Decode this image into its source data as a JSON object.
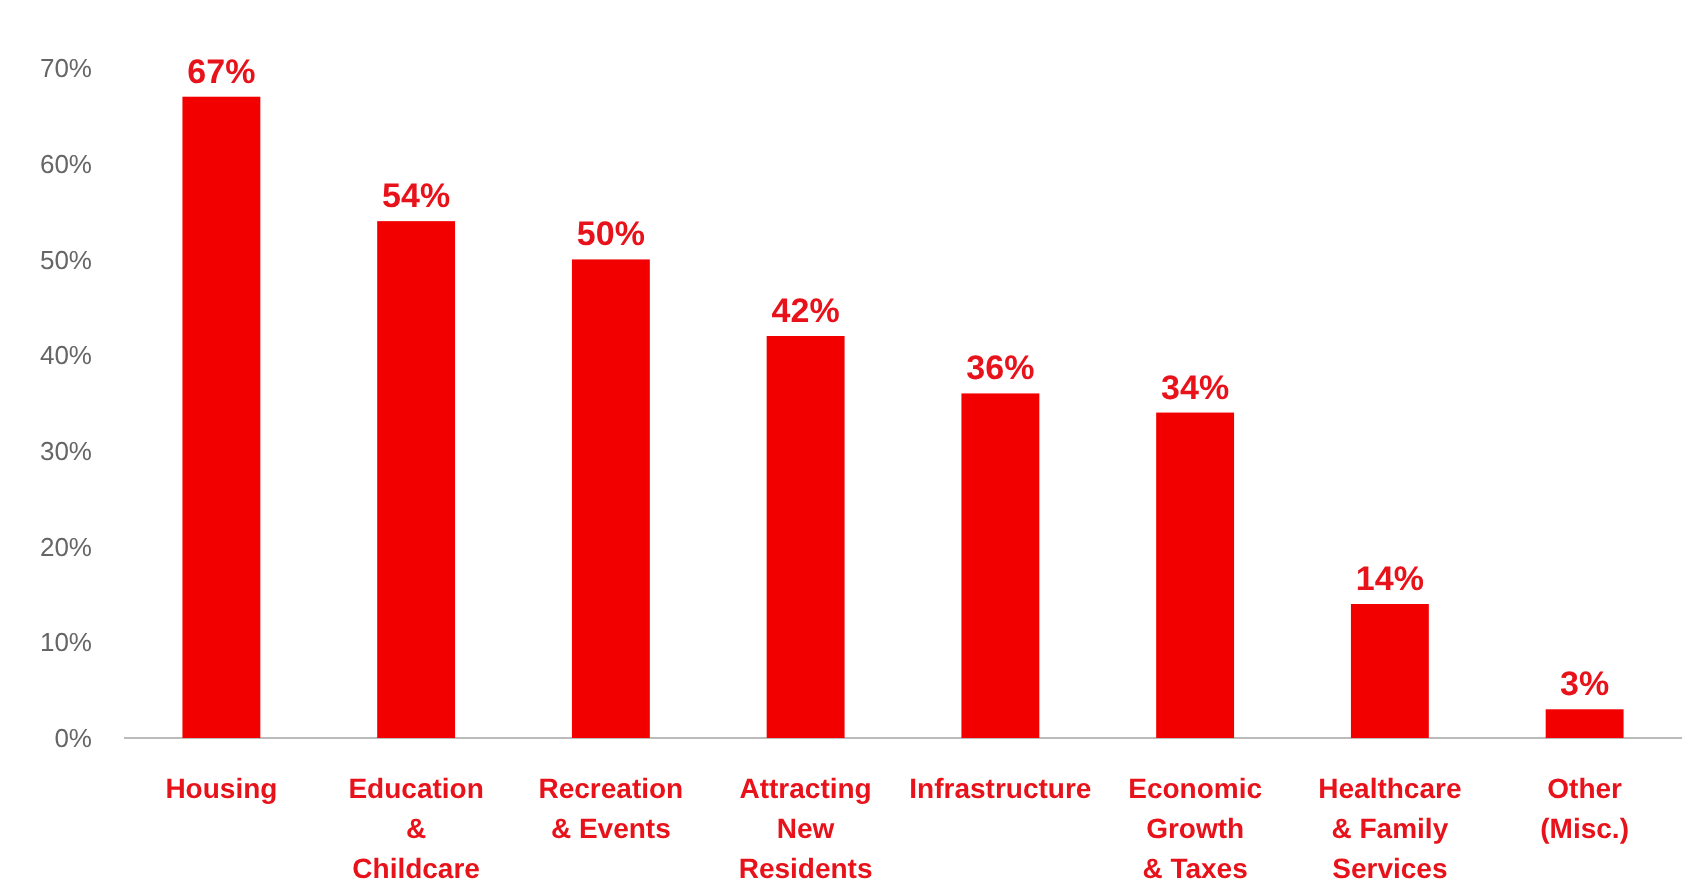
{
  "chart_data": {
    "type": "bar",
    "categories": [
      "Housing",
      "Education\n&\nChildcare",
      "Recreation\n& Events",
      "Attracting\nNew\nResidents",
      "Infrastructure",
      "Economic\nGrowth\n& Taxes",
      "Healthcare\n& Family\nServices",
      "Other\n(Misc.)"
    ],
    "values": [
      67,
      54,
      50,
      42,
      36,
      34,
      14,
      3
    ],
    "value_labels": [
      "67%",
      "54%",
      "50%",
      "42%",
      "36%",
      "34%",
      "14%",
      "3%"
    ],
    "color": "#f20000",
    "ylim": [
      0,
      70
    ],
    "yticks": [
      {
        "value": 0,
        "label": "0%"
      },
      {
        "value": 10,
        "label": "10%"
      },
      {
        "value": 20,
        "label": "20%"
      },
      {
        "value": 30,
        "label": "30%"
      },
      {
        "value": 40,
        "label": "40%"
      },
      {
        "value": 50,
        "label": "50%"
      },
      {
        "value": 60,
        "label": "60%"
      },
      {
        "value": 70,
        "label": "70%"
      }
    ],
    "grid": false
  }
}
